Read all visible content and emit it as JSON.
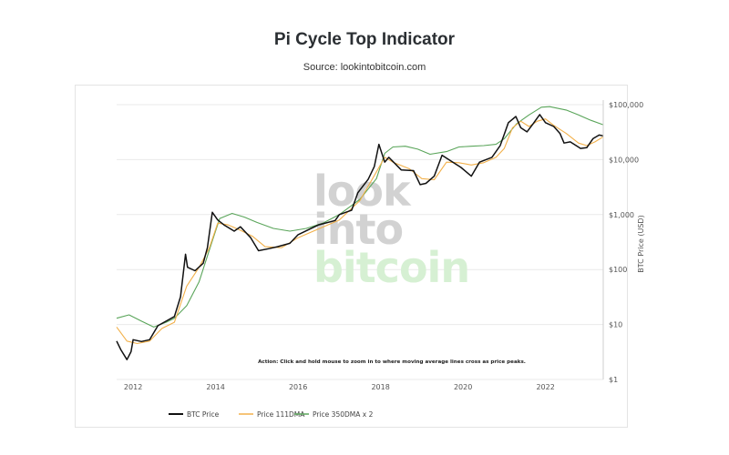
{
  "title": "Pi Cycle Top Indicator",
  "source": "Source: lookintobitcoin.com",
  "watermark": {
    "line1": "look",
    "line2": "into",
    "line3": "bitcoin"
  },
  "annotation": "Action: Click and hold mouse to zoom in to where moving average lines cross as price peaks.",
  "colors": {
    "btc": "#111111",
    "dma111": "#f2b04a",
    "dma350x2": "#5aa55a",
    "grid": "#e9e9e9",
    "wm_gray": "#d2d2d2",
    "wm_green": "#d6f0d3"
  },
  "chart_data": {
    "type": "line",
    "title": "Pi Cycle Top Indicator",
    "subtitle": "Source: lookintobitcoin.com",
    "xlabel": "",
    "ylabel": "BTC Price (USD)",
    "yscale": "log",
    "ylim": [
      1,
      100000
    ],
    "xlim": [
      2011.6,
      2023.4
    ],
    "y_ticks": [
      {
        "value": 1,
        "label": "$1"
      },
      {
        "value": 10,
        "label": "$10"
      },
      {
        "value": 100,
        "label": "$100"
      },
      {
        "value": 1000,
        "label": "$1,000"
      },
      {
        "value": 10000,
        "label": "$10,000"
      },
      {
        "value": 100000,
        "label": "$100,000"
      }
    ],
    "x_ticks": [
      {
        "value": 2012,
        "label": "2012"
      },
      {
        "value": 2014,
        "label": "2014"
      },
      {
        "value": 2016,
        "label": "2016"
      },
      {
        "value": 2018,
        "label": "2018"
      },
      {
        "value": 2020,
        "label": "2020"
      },
      {
        "value": 2022,
        "label": "2022"
      }
    ],
    "grid": true,
    "legend_position": "bottom-left",
    "series": [
      {
        "name": "BTC Price",
        "color": "#111111",
        "points": [
          [
            2011.6,
            5
          ],
          [
            2011.7,
            3.5
          ],
          [
            2011.85,
            2.3
          ],
          [
            2011.95,
            3.2
          ],
          [
            2012.0,
            5.3
          ],
          [
            2012.2,
            4.9
          ],
          [
            2012.4,
            5.3
          ],
          [
            2012.6,
            9.5
          ],
          [
            2012.8,
            11.5
          ],
          [
            2013.0,
            14
          ],
          [
            2013.15,
            32
          ],
          [
            2013.27,
            190
          ],
          [
            2013.32,
            110
          ],
          [
            2013.5,
            95
          ],
          [
            2013.7,
            130
          ],
          [
            2013.8,
            250
          ],
          [
            2013.92,
            1100
          ],
          [
            2014.05,
            800
          ],
          [
            2014.2,
            650
          ],
          [
            2014.45,
            500
          ],
          [
            2014.6,
            600
          ],
          [
            2014.85,
            380
          ],
          [
            2015.04,
            220
          ],
          [
            2015.3,
            240
          ],
          [
            2015.5,
            260
          ],
          [
            2015.8,
            300
          ],
          [
            2016.0,
            430
          ],
          [
            2016.5,
            650
          ],
          [
            2016.9,
            780
          ],
          [
            2017.0,
            1000
          ],
          [
            2017.3,
            1200
          ],
          [
            2017.45,
            2500
          ],
          [
            2017.7,
            4400
          ],
          [
            2017.85,
            7500
          ],
          [
            2017.96,
            19000
          ],
          [
            2018.1,
            9000
          ],
          [
            2018.2,
            11000
          ],
          [
            2018.5,
            6500
          ],
          [
            2018.8,
            6300
          ],
          [
            2018.96,
            3500
          ],
          [
            2019.1,
            3700
          ],
          [
            2019.3,
            5000
          ],
          [
            2019.49,
            12000
          ],
          [
            2019.7,
            9500
          ],
          [
            2019.95,
            7200
          ],
          [
            2020.2,
            5000
          ],
          [
            2020.4,
            9000
          ],
          [
            2020.7,
            11000
          ],
          [
            2020.9,
            18000
          ],
          [
            2021.0,
            29000
          ],
          [
            2021.1,
            47000
          ],
          [
            2021.28,
            61000
          ],
          [
            2021.4,
            38000
          ],
          [
            2021.55,
            32000
          ],
          [
            2021.7,
            45000
          ],
          [
            2021.86,
            66000
          ],
          [
            2022.0,
            47000
          ],
          [
            2022.2,
            40000
          ],
          [
            2022.35,
            30000
          ],
          [
            2022.45,
            20000
          ],
          [
            2022.6,
            21000
          ],
          [
            2022.85,
            16000
          ],
          [
            2023.0,
            16500
          ],
          [
            2023.15,
            24000
          ],
          [
            2023.3,
            28000
          ],
          [
            2023.4,
            27000
          ]
        ]
      },
      {
        "name": "Price 111DMA",
        "color": "#f2b04a",
        "points": [
          [
            2011.6,
            9
          ],
          [
            2011.85,
            5
          ],
          [
            2012.1,
            4.5
          ],
          [
            2012.4,
            5
          ],
          [
            2012.7,
            8.5
          ],
          [
            2013.0,
            11
          ],
          [
            2013.3,
            50
          ],
          [
            2013.6,
            110
          ],
          [
            2013.85,
            250
          ],
          [
            2014.05,
            700
          ],
          [
            2014.3,
            650
          ],
          [
            2014.6,
            520
          ],
          [
            2014.9,
            400
          ],
          [
            2015.2,
            260
          ],
          [
            2015.6,
            250
          ],
          [
            2016.0,
            380
          ],
          [
            2016.5,
            550
          ],
          [
            2017.0,
            800
          ],
          [
            2017.5,
            1800
          ],
          [
            2017.9,
            6000
          ],
          [
            2018.1,
            11000
          ],
          [
            2018.3,
            9000
          ],
          [
            2018.7,
            6800
          ],
          [
            2019.0,
            4500
          ],
          [
            2019.3,
            4300
          ],
          [
            2019.6,
            9000
          ],
          [
            2019.9,
            8800
          ],
          [
            2020.2,
            8000
          ],
          [
            2020.5,
            8800
          ],
          [
            2020.8,
            11000
          ],
          [
            2021.0,
            16000
          ],
          [
            2021.2,
            38000
          ],
          [
            2021.4,
            50000
          ],
          [
            2021.6,
            40000
          ],
          [
            2021.8,
            50000
          ],
          [
            2022.0,
            55000
          ],
          [
            2022.2,
            42000
          ],
          [
            2022.5,
            30000
          ],
          [
            2022.8,
            20000
          ],
          [
            2023.0,
            18000
          ],
          [
            2023.2,
            21000
          ],
          [
            2023.4,
            26000
          ]
        ]
      },
      {
        "name": "Price 350DMA x 2",
        "color": "#5aa55a",
        "points": [
          [
            2011.6,
            13
          ],
          [
            2011.9,
            15
          ],
          [
            2012.2,
            11.5
          ],
          [
            2012.5,
            9
          ],
          [
            2012.8,
            11
          ],
          [
            2013.0,
            13
          ],
          [
            2013.3,
            22
          ],
          [
            2013.6,
            60
          ],
          [
            2013.9,
            300
          ],
          [
            2014.1,
            850
          ],
          [
            2014.4,
            1050
          ],
          [
            2014.7,
            900
          ],
          [
            2015.0,
            720
          ],
          [
            2015.4,
            560
          ],
          [
            2015.8,
            500
          ],
          [
            2016.2,
            560
          ],
          [
            2016.6,
            700
          ],
          [
            2017.0,
            1000
          ],
          [
            2017.5,
            1900
          ],
          [
            2017.9,
            4500
          ],
          [
            2018.1,
            13000
          ],
          [
            2018.3,
            17000
          ],
          [
            2018.6,
            17500
          ],
          [
            2018.9,
            15500
          ],
          [
            2019.2,
            12500
          ],
          [
            2019.6,
            14000
          ],
          [
            2019.9,
            17000
          ],
          [
            2020.2,
            17500
          ],
          [
            2020.5,
            18000
          ],
          [
            2020.8,
            19000
          ],
          [
            2021.0,
            24000
          ],
          [
            2021.3,
            45000
          ],
          [
            2021.6,
            65000
          ],
          [
            2021.9,
            90000
          ],
          [
            2022.1,
            92000
          ],
          [
            2022.5,
            80000
          ],
          [
            2022.8,
            65000
          ],
          [
            2023.1,
            52000
          ],
          [
            2023.4,
            43000
          ]
        ]
      }
    ]
  }
}
